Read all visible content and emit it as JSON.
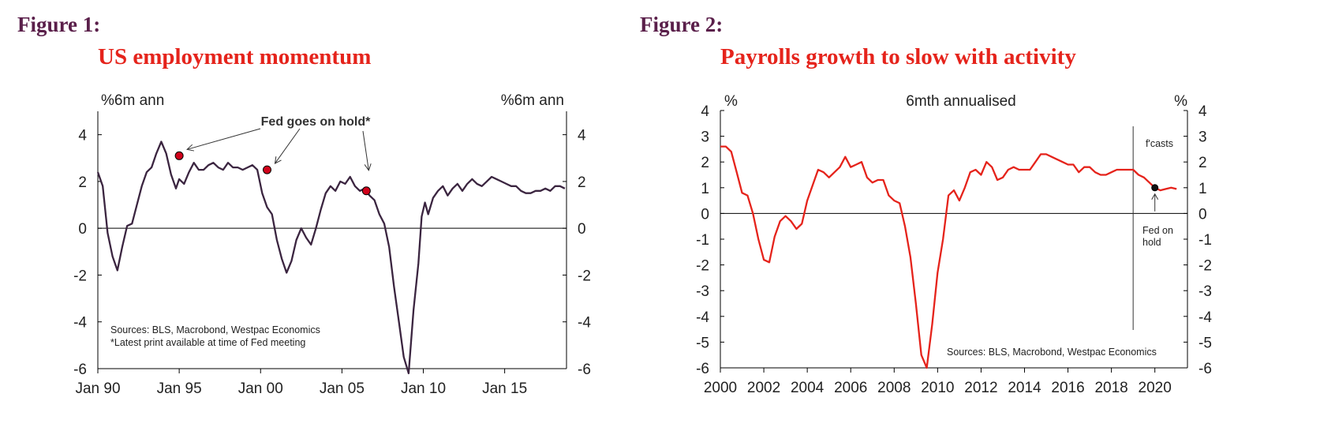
{
  "colors": {
    "figure_label": "#5a1f4a",
    "title": "#e5231b",
    "line1": "#3b2540",
    "line2": "#e5231b",
    "marker": "#d0021b"
  },
  "figures": [
    {
      "label": "Figure 1:",
      "title": "US employment momentum"
    },
    {
      "label": "Figure 2:",
      "title": "Payrolls growth to slow with activity"
    }
  ],
  "chart_data": [
    {
      "type": "line",
      "title": "US employment momentum",
      "ylabel_left": "%6m ann",
      "ylabel_right": "%6m ann",
      "ylim": [
        -6,
        5
      ],
      "yticks": [
        4,
        2,
        0,
        -2,
        -4,
        -6
      ],
      "xlim": [
        1990.0,
        2018.8
      ],
      "xticks": [
        1990,
        1995,
        2000,
        2005,
        2010,
        2015
      ],
      "xtick_labels": [
        "Jan 90",
        "Jan 95",
        "Jan 00",
        "Jan 05",
        "Jan 10",
        "Jan 15"
      ],
      "grid": false,
      "series": [
        {
          "x": [
            1990.0,
            1990.3,
            1990.6,
            1990.9,
            1991.2,
            1991.5,
            1991.8,
            1992.1,
            1992.4,
            1992.7,
            1993.0,
            1993.3,
            1993.6,
            1993.9,
            1994.2,
            1994.5,
            1994.8,
            1995.0,
            1995.3,
            1995.6,
            1995.9,
            1996.2,
            1996.5,
            1996.8,
            1997.1,
            1997.4,
            1997.7,
            1998.0,
            1998.3,
            1998.6,
            1998.9,
            1999.2,
            1999.5,
            1999.8,
            2000.1,
            2000.4,
            2000.7,
            2001.0,
            2001.3,
            2001.6,
            2001.9,
            2002.2,
            2002.5,
            2002.8,
            2003.1,
            2003.4,
            2003.7,
            2004.0,
            2004.3,
            2004.6,
            2004.9,
            2005.2,
            2005.5,
            2005.8,
            2006.1,
            2006.4,
            2006.7,
            2007.0,
            2007.3,
            2007.6,
            2007.9,
            2008.2,
            2008.5,
            2008.8,
            2009.1,
            2009.4,
            2009.7,
            2009.9,
            2010.1,
            2010.3,
            2010.6,
            2010.9,
            2011.2,
            2011.5,
            2011.8,
            2012.1,
            2012.4,
            2012.7,
            2013.0,
            2013.3,
            2013.6,
            2013.9,
            2014.2,
            2014.5,
            2014.8,
            2015.1,
            2015.4,
            2015.7,
            2016.0,
            2016.3,
            2016.6,
            2016.9,
            2017.2,
            2017.5,
            2017.8,
            2018.1,
            2018.4,
            2018.7
          ],
          "y": [
            2.4,
            1.8,
            -0.2,
            -1.2,
            -1.8,
            -0.8,
            0.1,
            0.2,
            1.0,
            1.8,
            2.4,
            2.6,
            3.2,
            3.7,
            3.2,
            2.3,
            1.7,
            2.1,
            1.9,
            2.4,
            2.8,
            2.5,
            2.5,
            2.7,
            2.8,
            2.6,
            2.5,
            2.8,
            2.6,
            2.6,
            2.5,
            2.6,
            2.7,
            2.5,
            1.5,
            0.9,
            0.6,
            -0.5,
            -1.3,
            -1.9,
            -1.4,
            -0.5,
            0.0,
            -0.4,
            -0.7,
            0.0,
            0.8,
            1.5,
            1.8,
            1.6,
            2.0,
            1.9,
            2.2,
            1.8,
            1.6,
            1.7,
            1.4,
            1.2,
            0.6,
            0.2,
            -0.8,
            -2.5,
            -4.0,
            -5.5,
            -6.2,
            -3.5,
            -1.5,
            0.5,
            1.1,
            0.6,
            1.3,
            1.6,
            1.8,
            1.4,
            1.7,
            1.9,
            1.6,
            1.9,
            2.1,
            1.9,
            1.8,
            2.0,
            2.2,
            2.1,
            2.0,
            1.9,
            1.8,
            1.8,
            1.6,
            1.5,
            1.5,
            1.6,
            1.6,
            1.7,
            1.6,
            1.8,
            1.8,
            1.7
          ]
        }
      ],
      "markers": [
        {
          "x": 1995.0,
          "y": 3.1
        },
        {
          "x": 2000.4,
          "y": 2.5
        },
        {
          "x": 2006.5,
          "y": 1.6
        }
      ],
      "annotations": [
        {
          "text": "Fed goes on hold*"
        },
        {
          "text": "Sources: BLS, Macrobond, Westpac Economics"
        },
        {
          "text": "*Latest print available at time of Fed meeting"
        }
      ]
    },
    {
      "type": "line",
      "title": "Payrolls growth to slow with activity",
      "ylabel_left": "%",
      "ylabel_right": "%",
      "header": "6mth annualised",
      "ylim": [
        -6,
        4
      ],
      "yticks": [
        4,
        3,
        2,
        1,
        0,
        -1,
        -2,
        -3,
        -4,
        -5,
        -6
      ],
      "xlim": [
        2000,
        2021.5
      ],
      "xticks": [
        2000,
        2002,
        2004,
        2006,
        2008,
        2010,
        2012,
        2014,
        2016,
        2018,
        2020
      ],
      "xtick_labels": [
        "2000",
        "2002",
        "2004",
        "2006",
        "2008",
        "2010",
        "2012",
        "2014",
        "2016",
        "2018",
        "2020"
      ],
      "grid": false,
      "forecast_start": 2019.0,
      "series": [
        {
          "x": [
            2000.0,
            2000.25,
            2000.5,
            2000.75,
            2001.0,
            2001.25,
            2001.5,
            2001.75,
            2002.0,
            2002.25,
            2002.5,
            2002.75,
            2003.0,
            2003.25,
            2003.5,
            2003.75,
            2004.0,
            2004.25,
            2004.5,
            2004.75,
            2005.0,
            2005.25,
            2005.5,
            2005.75,
            2006.0,
            2006.25,
            2006.5,
            2006.75,
            2007.0,
            2007.25,
            2007.5,
            2007.75,
            2008.0,
            2008.25,
            2008.5,
            2008.75,
            2009.0,
            2009.25,
            2009.5,
            2009.75,
            2010.0,
            2010.25,
            2010.5,
            2010.75,
            2011.0,
            2011.25,
            2011.5,
            2011.75,
            2012.0,
            2012.25,
            2012.5,
            2012.75,
            2013.0,
            2013.25,
            2013.5,
            2013.75,
            2014.0,
            2014.25,
            2014.5,
            2014.75,
            2015.0,
            2015.25,
            2015.5,
            2015.75,
            2016.0,
            2016.25,
            2016.5,
            2016.75,
            2017.0,
            2017.25,
            2017.5,
            2017.75,
            2018.0,
            2018.25,
            2018.5,
            2018.75,
            2019.0,
            2019.25,
            2019.5,
            2019.75,
            2020.0,
            2020.25,
            2020.5,
            2020.75,
            2021.0
          ],
          "y": [
            2.6,
            2.6,
            2.4,
            1.6,
            0.8,
            0.7,
            0.0,
            -1.0,
            -1.8,
            -1.9,
            -0.9,
            -0.3,
            -0.1,
            -0.3,
            -0.6,
            -0.4,
            0.5,
            1.1,
            1.7,
            1.6,
            1.4,
            1.6,
            1.8,
            2.2,
            1.8,
            1.9,
            2.0,
            1.4,
            1.2,
            1.3,
            1.3,
            0.7,
            0.5,
            0.4,
            -0.5,
            -1.7,
            -3.5,
            -5.5,
            -6.0,
            -4.3,
            -2.3,
            -1.0,
            0.7,
            0.9,
            0.5,
            1.0,
            1.6,
            1.7,
            1.5,
            2.0,
            1.8,
            1.3,
            1.4,
            1.7,
            1.8,
            1.7,
            1.7,
            1.7,
            2.0,
            2.3,
            2.3,
            2.2,
            2.1,
            2.0,
            1.9,
            1.9,
            1.6,
            1.8,
            1.8,
            1.6,
            1.5,
            1.5,
            1.6,
            1.7,
            1.7,
            1.7,
            1.7,
            1.5,
            1.4,
            1.2,
            1.0,
            0.9,
            0.95,
            1.0,
            0.95
          ]
        }
      ],
      "markers": [
        {
          "x": 2020.0,
          "y": 1.0
        }
      ],
      "annotations": [
        {
          "text": "f'casts"
        },
        {
          "text": "Fed on"
        },
        {
          "text": "hold"
        },
        {
          "text": "Sources: BLS, Macrobond, Westpac Economics"
        }
      ]
    }
  ]
}
